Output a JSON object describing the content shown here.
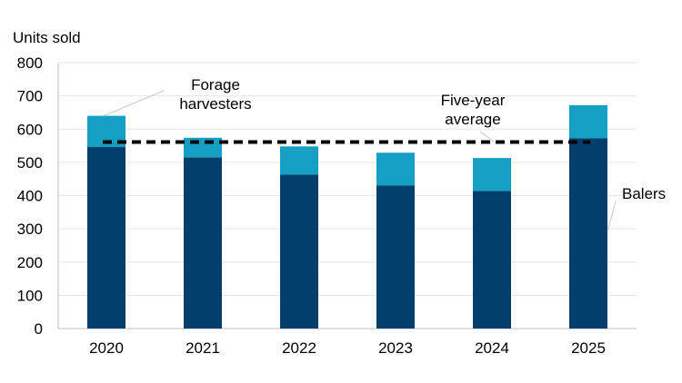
{
  "chart_data": {
    "type": "bar",
    "stacked": true,
    "ylabel": "Units sold",
    "ylim": [
      0,
      800
    ],
    "yticks": [
      0,
      100,
      200,
      300,
      400,
      500,
      600,
      700,
      800
    ],
    "grid": true,
    "categories": [
      "2020",
      "2021",
      "2022",
      "2023",
      "2024",
      "2025"
    ],
    "series": [
      {
        "name": "Balers",
        "values": [
          547,
          515,
          463,
          430,
          414,
          572
        ],
        "color": "#003f6b"
      },
      {
        "name": "Forage harvesters",
        "values": [
          93,
          59,
          85,
          99,
          99,
          100
        ],
        "color": "#159fc4"
      }
    ],
    "reference_line": {
      "name": "Five-year average",
      "value": 561,
      "style": "dashed",
      "color": "#000000"
    },
    "annotations": {
      "forage": "Forage harvesters",
      "average": "Five-year average",
      "balers": "Balers"
    }
  }
}
